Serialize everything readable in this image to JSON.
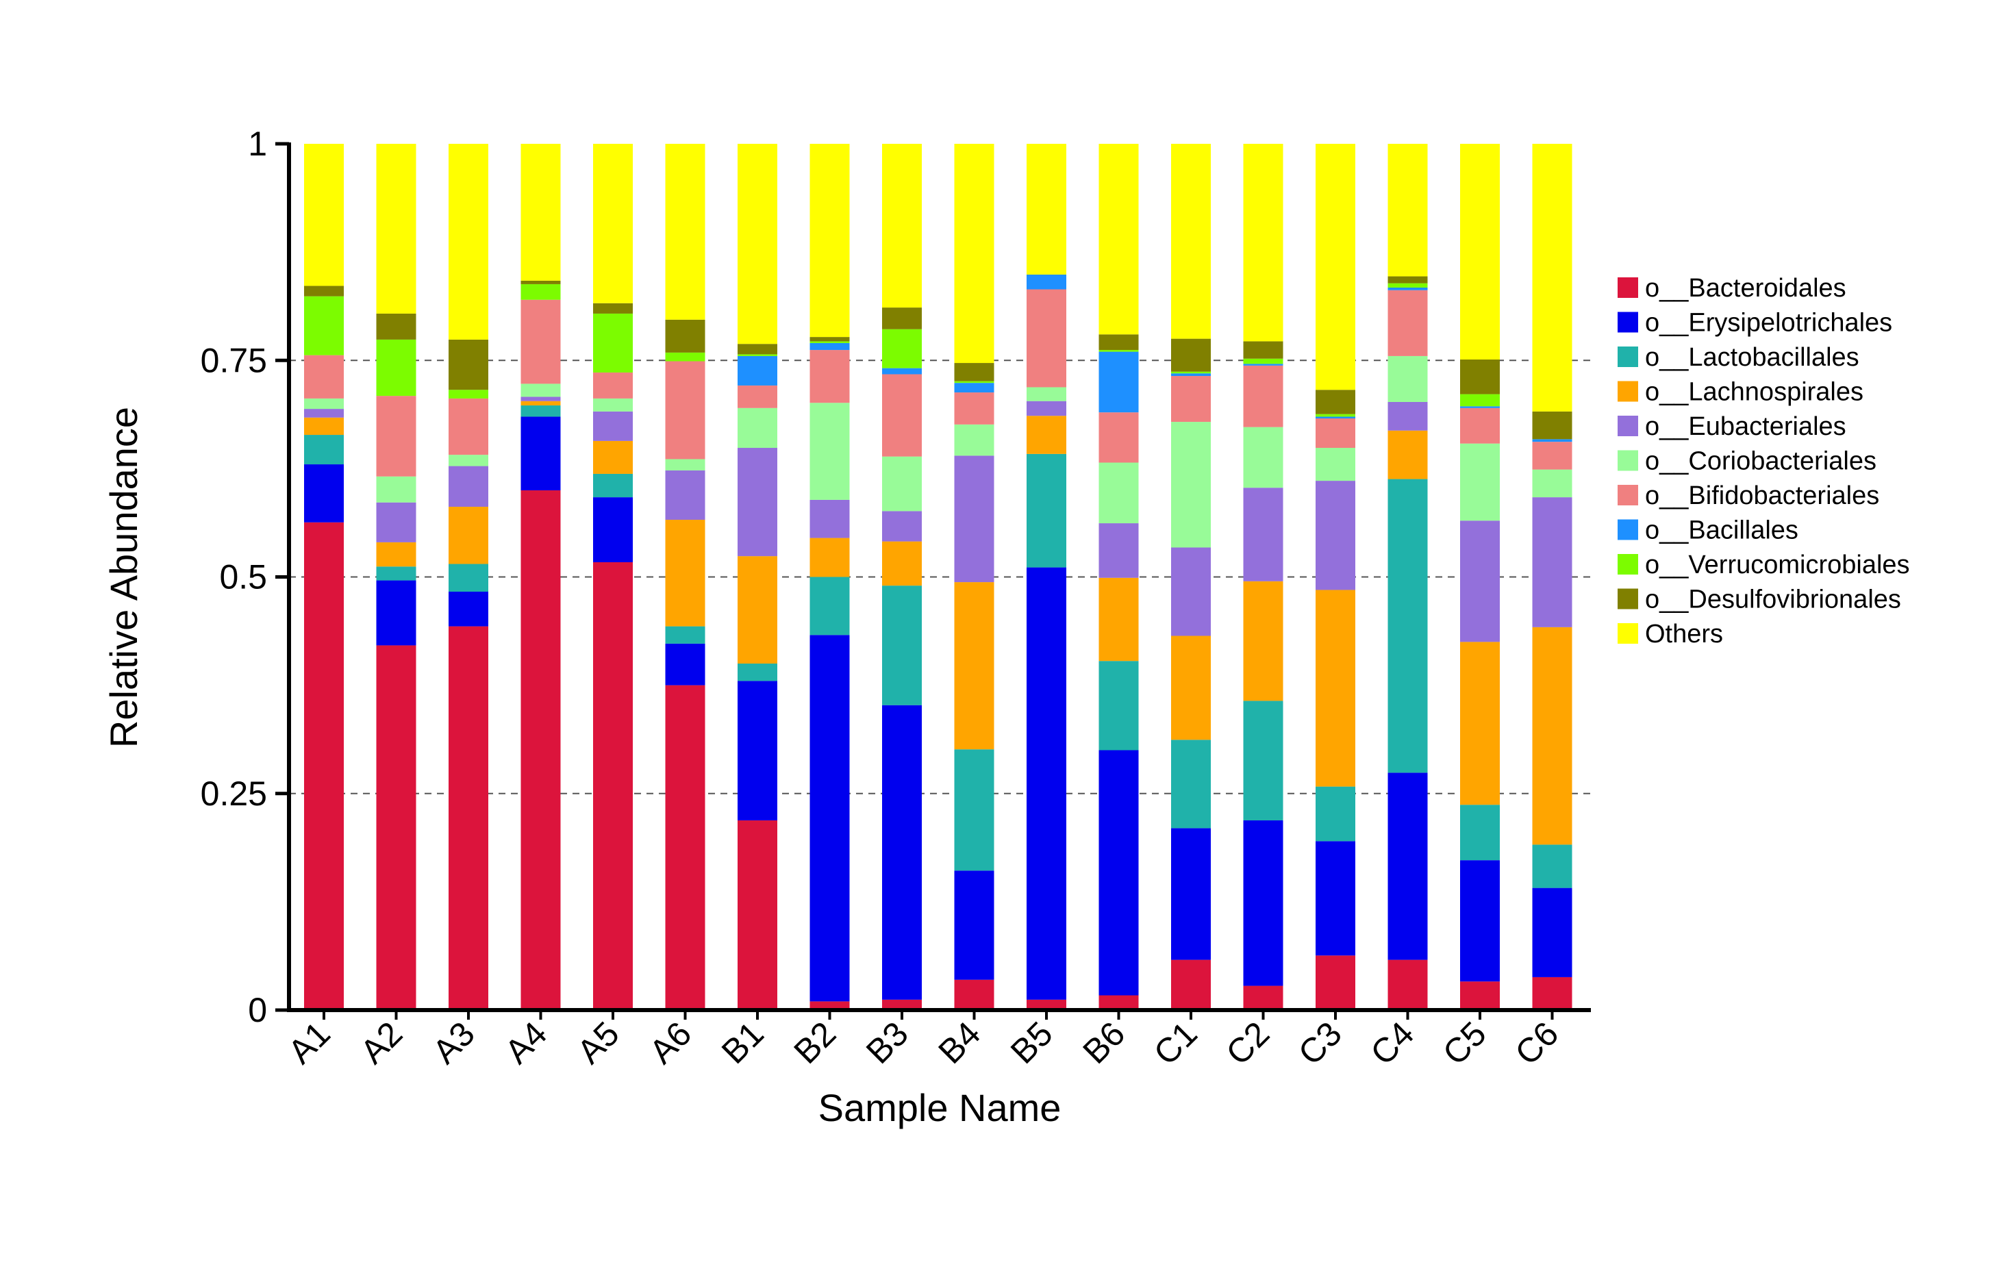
{
  "chart_data": {
    "type": "bar",
    "stacked": true,
    "title": "",
    "xlabel": "Sample Name",
    "ylabel": "Relative Abundance",
    "ylim": [
      0,
      1
    ],
    "yticks": [
      0,
      0.25,
      0.5,
      0.75,
      1
    ],
    "ytick_labels": [
      "0",
      "0.25",
      "0.5",
      "0.75",
      "1"
    ],
    "grid": "dashed horizontal at 0.25, 0.5, 0.75",
    "legend_position": "right",
    "categories": [
      "A1",
      "A2",
      "A3",
      "A4",
      "A5",
      "A6",
      "B1",
      "B2",
      "B3",
      "B4",
      "B5",
      "B6",
      "C1",
      "C2",
      "C3",
      "C4",
      "C5",
      "C6"
    ],
    "series": [
      {
        "name": "o__Bacteroidales",
        "color": "#DC143C",
        "values": [
          0.563,
          0.421,
          0.443,
          0.6,
          0.517,
          0.375,
          0.219,
          0.01,
          0.012,
          0.035,
          0.012,
          0.017,
          0.058,
          0.028,
          0.063,
          0.058,
          0.033,
          0.038
        ]
      },
      {
        "name": "o__Erysipelotrichales",
        "color": "#0000EE",
        "values": [
          0.067,
          0.075,
          0.04,
          0.085,
          0.075,
          0.048,
          0.161,
          0.423,
          0.34,
          0.126,
          0.499,
          0.283,
          0.152,
          0.191,
          0.132,
          0.216,
          0.14,
          0.103
        ]
      },
      {
        "name": "o__Lactobacillales",
        "color": "#20B2AA",
        "values": [
          0.034,
          0.016,
          0.032,
          0.013,
          0.027,
          0.02,
          0.02,
          0.067,
          0.138,
          0.14,
          0.131,
          0.103,
          0.102,
          0.138,
          0.063,
          0.339,
          0.064,
          0.05
        ]
      },
      {
        "name": "o__Lachnospirales",
        "color": "#FFA500",
        "values": [
          0.02,
          0.028,
          0.066,
          0.005,
          0.038,
          0.123,
          0.124,
          0.045,
          0.051,
          0.193,
          0.044,
          0.096,
          0.12,
          0.138,
          0.227,
          0.056,
          0.188,
          0.251
        ]
      },
      {
        "name": "o__Eubacteriales",
        "color": "#9370DB",
        "values": [
          0.01,
          0.046,
          0.047,
          0.005,
          0.034,
          0.057,
          0.125,
          0.044,
          0.035,
          0.146,
          0.017,
          0.063,
          0.102,
          0.108,
          0.126,
          0.033,
          0.14,
          0.15
        ]
      },
      {
        "name": "o__Coriobacteriales",
        "color": "#98FB98",
        "values": [
          0.012,
          0.03,
          0.013,
          0.015,
          0.015,
          0.013,
          0.046,
          0.112,
          0.063,
          0.036,
          0.016,
          0.07,
          0.145,
          0.07,
          0.038,
          0.053,
          0.089,
          0.032
        ]
      },
      {
        "name": "o__Bifidobacteriales",
        "color": "#F08080",
        "values": [
          0.05,
          0.093,
          0.065,
          0.097,
          0.03,
          0.113,
          0.026,
          0.061,
          0.095,
          0.037,
          0.113,
          0.058,
          0.053,
          0.071,
          0.034,
          0.076,
          0.041,
          0.032
        ]
      },
      {
        "name": "o__Bacillales",
        "color": "#1E90FF",
        "values": [
          0,
          0,
          0,
          0,
          0,
          0,
          0.034,
          0.008,
          0.007,
          0.011,
          0.017,
          0.07,
          0.003,
          0.002,
          0.002,
          0.003,
          0.002,
          0.003
        ]
      },
      {
        "name": "o__Verrucomicrobiales",
        "color": "#7CFC00",
        "values": [
          0.068,
          0.065,
          0.01,
          0.018,
          0.068,
          0.01,
          0.002,
          0.002,
          0.045,
          0.002,
          0,
          0.002,
          0.002,
          0.006,
          0.003,
          0.005,
          0.014,
          0
        ]
      },
      {
        "name": "o__Desulfovibrionales",
        "color": "#808000",
        "values": [
          0.012,
          0.03,
          0.058,
          0.004,
          0.012,
          0.038,
          0.012,
          0.005,
          0.025,
          0.021,
          0,
          0.018,
          0.038,
          0.02,
          0.028,
          0.008,
          0.04,
          0.032
        ]
      },
      {
        "name": "Others",
        "color": "#FFFF00",
        "values": [
          0.164,
          0.196,
          0.226,
          0.158,
          0.184,
          0.203,
          0.231,
          0.223,
          0.189,
          0.253,
          0.151,
          0.22,
          0.225,
          0.228,
          0.284,
          0.153,
          0.249,
          0.309
        ]
      }
    ]
  }
}
